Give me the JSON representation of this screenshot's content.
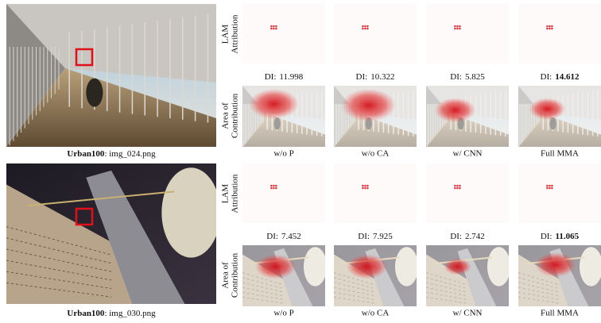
{
  "examples": [
    {
      "dataset": "Urban100",
      "file_label": ": img_024.png",
      "row_labels": [
        [
          "LAM",
          "Attribution"
        ],
        [
          "Area of",
          "Contribution"
        ]
      ],
      "di_prefix": "DI:",
      "di": [
        "11.998",
        "10.322",
        "5.825",
        "14.612"
      ],
      "bold_index": 3,
      "methods": [
        "w/o P",
        "w/o CA",
        "w/ CNN",
        "Full MMA"
      ]
    },
    {
      "dataset": "Urban100",
      "file_label": ": img_030.png",
      "row_labels": [
        [
          "LAM",
          "Attribution"
        ],
        [
          "Area of",
          "Contribution"
        ]
      ],
      "di_prefix": "DI:",
      "di": [
        "7.452",
        "7.925",
        "2.742",
        "11.065"
      ],
      "bold_index": 3,
      "methods": [
        "w/o P",
        "w/o CA",
        "w/ CNN",
        "Full MMA"
      ]
    }
  ]
}
